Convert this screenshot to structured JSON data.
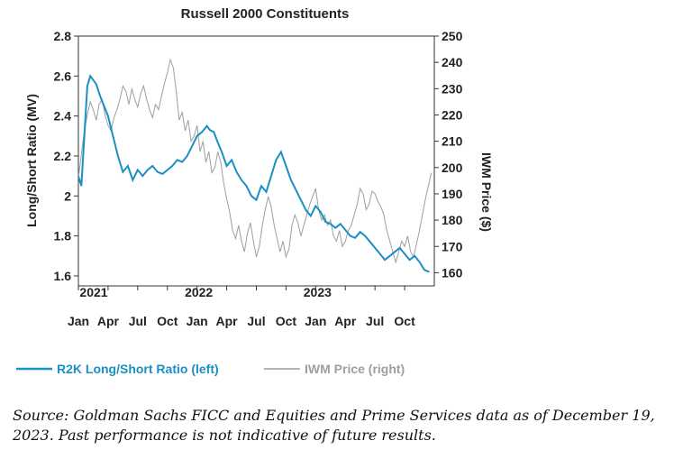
{
  "chart_data": {
    "type": "line",
    "title": "Russell 2000 Constituents",
    "ylabel_left": "Long/Short Ratio (MV)",
    "ylabel_right": "IWM Price ($)",
    "ylim_left": [
      1.55,
      2.8
    ],
    "ylim_right": [
      155,
      250
    ],
    "yticks_left": [
      "2.8",
      "2.6",
      "2.4",
      "2.2",
      "2",
      "1.8",
      "1.6"
    ],
    "yticks_right": [
      "250",
      "240",
      "230",
      "220",
      "210",
      "200",
      "190",
      "180",
      "170",
      "160"
    ],
    "month_ticks": [
      "Jan",
      "Apr",
      "Jul",
      "Oct",
      "Jan",
      "Apr",
      "Jul",
      "Oct",
      "Jan",
      "Apr",
      "Jul",
      "Oct"
    ],
    "year_labels": [
      "2021",
      "2022",
      "2023"
    ],
    "x_range_months": [
      0,
      36
    ],
    "series": [
      {
        "name": "R2K Long/Short Ratio (left)",
        "axis": "left",
        "color": "#1a8fc2",
        "x": [
          0,
          0.3,
          0.6,
          0.9,
          1.2,
          1.5,
          1.8,
          2.2,
          2.6,
          3.0,
          3.5,
          4.0,
          4.5,
          5.0,
          5.5,
          6.0,
          6.5,
          7.0,
          7.5,
          8.0,
          8.5,
          9.0,
          9.5,
          10.0,
          10.5,
          11.0,
          11.5,
          12.0,
          12.5,
          13.0,
          13.3,
          13.7,
          14.0,
          14.5,
          15.0,
          15.5,
          16.0,
          16.5,
          17.0,
          17.5,
          18.0,
          18.5,
          19.0,
          19.5,
          20.0,
          20.5,
          21.0,
          21.5,
          22.0,
          22.5,
          23.0,
          23.5,
          24.0,
          24.5,
          25.0,
          25.5,
          26.0,
          26.5,
          27.0,
          27.5,
          28.0,
          28.5,
          29.0,
          29.5,
          30.0,
          30.5,
          31.0,
          31.5,
          32.0,
          32.5,
          33.0,
          33.5,
          34.0,
          34.5,
          35.0,
          35.5
        ],
        "values": [
          2.1,
          2.05,
          2.3,
          2.55,
          2.6,
          2.58,
          2.56,
          2.5,
          2.45,
          2.4,
          2.3,
          2.2,
          2.12,
          2.15,
          2.08,
          2.13,
          2.1,
          2.13,
          2.15,
          2.12,
          2.11,
          2.13,
          2.15,
          2.18,
          2.17,
          2.2,
          2.25,
          2.3,
          2.32,
          2.35,
          2.33,
          2.32,
          2.28,
          2.22,
          2.15,
          2.18,
          2.12,
          2.08,
          2.05,
          2.0,
          1.98,
          2.05,
          2.02,
          2.1,
          2.18,
          2.22,
          2.15,
          2.08,
          2.03,
          1.98,
          1.93,
          1.9,
          1.95,
          1.92,
          1.87,
          1.86,
          1.84,
          1.86,
          1.83,
          1.8,
          1.79,
          1.82,
          1.8,
          1.77,
          1.74,
          1.71,
          1.68,
          1.7,
          1.72,
          1.74,
          1.71,
          1.68,
          1.7,
          1.67,
          1.63,
          1.62
        ]
      },
      {
        "name": "IWM Price (right)",
        "axis": "right",
        "color": "#9e9e9e",
        "x": [
          0,
          0.3,
          0.6,
          0.9,
          1.2,
          1.5,
          1.8,
          2.1,
          2.4,
          2.7,
          3.0,
          3.3,
          3.6,
          3.9,
          4.2,
          4.5,
          4.8,
          5.1,
          5.4,
          5.7,
          6.0,
          6.3,
          6.6,
          6.9,
          7.2,
          7.5,
          7.8,
          8.1,
          8.4,
          8.7,
          9.0,
          9.3,
          9.6,
          9.9,
          10.2,
          10.5,
          10.8,
          11.1,
          11.4,
          11.7,
          12.0,
          12.3,
          12.6,
          12.9,
          13.2,
          13.5,
          13.8,
          14.1,
          14.4,
          14.7,
          15.0,
          15.3,
          15.6,
          15.9,
          16.2,
          16.5,
          16.8,
          17.1,
          17.4,
          17.7,
          18.0,
          18.3,
          18.6,
          18.9,
          19.2,
          19.5,
          19.8,
          20.1,
          20.4,
          20.7,
          21.0,
          21.3,
          21.6,
          21.9,
          22.2,
          22.5,
          22.8,
          23.1,
          23.4,
          23.7,
          24.0,
          24.3,
          24.6,
          24.9,
          25.2,
          25.5,
          25.8,
          26.1,
          26.4,
          26.7,
          27.0,
          27.3,
          27.6,
          27.9,
          28.2,
          28.5,
          28.8,
          29.1,
          29.4,
          29.7,
          30.0,
          30.3,
          30.6,
          30.9,
          31.2,
          31.5,
          31.8,
          32.1,
          32.4,
          32.7,
          33.0,
          33.3,
          33.6,
          33.9,
          34.2,
          34.5,
          34.8,
          35.1,
          35.4,
          35.7
        ],
        "values": [
          196,
          205,
          214,
          220,
          225,
          222,
          218,
          224,
          226,
          220,
          216,
          214,
          219,
          222,
          226,
          231,
          229,
          224,
          230,
          226,
          223,
          228,
          231,
          226,
          222,
          219,
          224,
          222,
          227,
          232,
          236,
          241,
          238,
          229,
          218,
          221,
          214,
          218,
          210,
          212,
          216,
          206,
          210,
          202,
          206,
          198,
          200,
          206,
          202,
          194,
          188,
          183,
          176,
          173,
          178,
          172,
          168,
          175,
          179,
          172,
          166,
          170,
          178,
          184,
          189,
          185,
          178,
          173,
          168,
          172,
          166,
          169,
          178,
          182,
          179,
          174,
          178,
          182,
          186,
          189,
          192,
          184,
          180,
          182,
          178,
          180,
          174,
          172,
          176,
          170,
          172,
          176,
          178,
          182,
          186,
          192,
          190,
          184,
          186,
          191,
          190,
          187,
          185,
          182,
          176,
          172,
          168,
          164,
          168,
          172,
          170,
          174,
          168,
          166,
          171,
          176,
          182,
          188,
          193,
          198
        ]
      }
    ],
    "legend": [
      "R2K Long/Short Ratio (left)",
      "IWM Price (right)"
    ],
    "legend_position": "bottom"
  },
  "source_text": "Source: Goldman Sachs FICC and Equities and Prime Services data as of December 19, 2023. Past performance is not indicative of future results."
}
